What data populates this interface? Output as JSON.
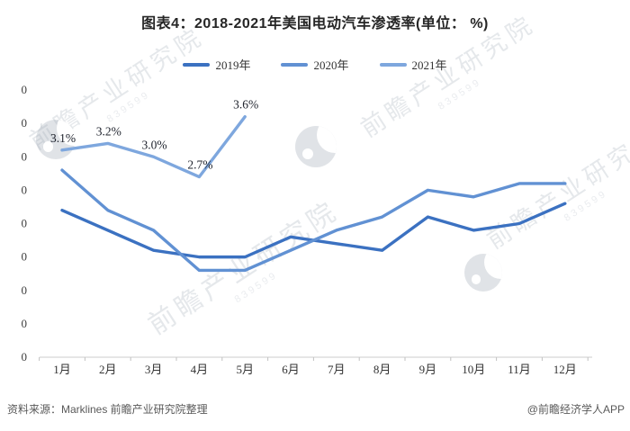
{
  "header": {
    "title": "图表4：2018-2021年美国电动汽车渗透率(单位： %)"
  },
  "chart_data": {
    "type": "line",
    "title": "图表4：2018-2021年美国电动汽车渗透率(单位： %)",
    "unit": "%",
    "categories": [
      "1月",
      "2月",
      "3月",
      "4月",
      "5月",
      "6月",
      "7月",
      "8月",
      "9月",
      "10月",
      "11月",
      "12月"
    ],
    "y_axis": {
      "min": 0,
      "max": 4.0,
      "step": 0.5,
      "tick_count": 9,
      "tick_label_display": "0",
      "gridlines": false
    },
    "legend_position": "top",
    "series": [
      {
        "name": "2019年",
        "color": "#3b71c1",
        "values": [
          2.2,
          1.9,
          1.6,
          1.5,
          1.5,
          1.8,
          1.7,
          1.6,
          2.1,
          1.9,
          2.0,
          2.3
        ]
      },
      {
        "name": "2020年",
        "color": "#6191d3",
        "values": [
          2.8,
          2.2,
          1.9,
          1.3,
          1.3,
          1.6,
          1.9,
          2.1,
          2.5,
          2.4,
          2.6,
          2.6
        ]
      },
      {
        "name": "2021年",
        "color": "#7ea7de",
        "values": [
          3.1,
          3.2,
          3.0,
          2.7,
          3.6
        ],
        "data_labels": [
          "3.1%",
          "3.2%",
          "3.0%",
          "2.7%",
          "3.6%"
        ]
      }
    ]
  },
  "watermark": {
    "text": "前瞻产业研究院",
    "digits": "839599"
  },
  "footer": {
    "source": "资料来源：Marklines 前瞻产业研究院整理",
    "credit": "@前瞻经济学人APP"
  }
}
